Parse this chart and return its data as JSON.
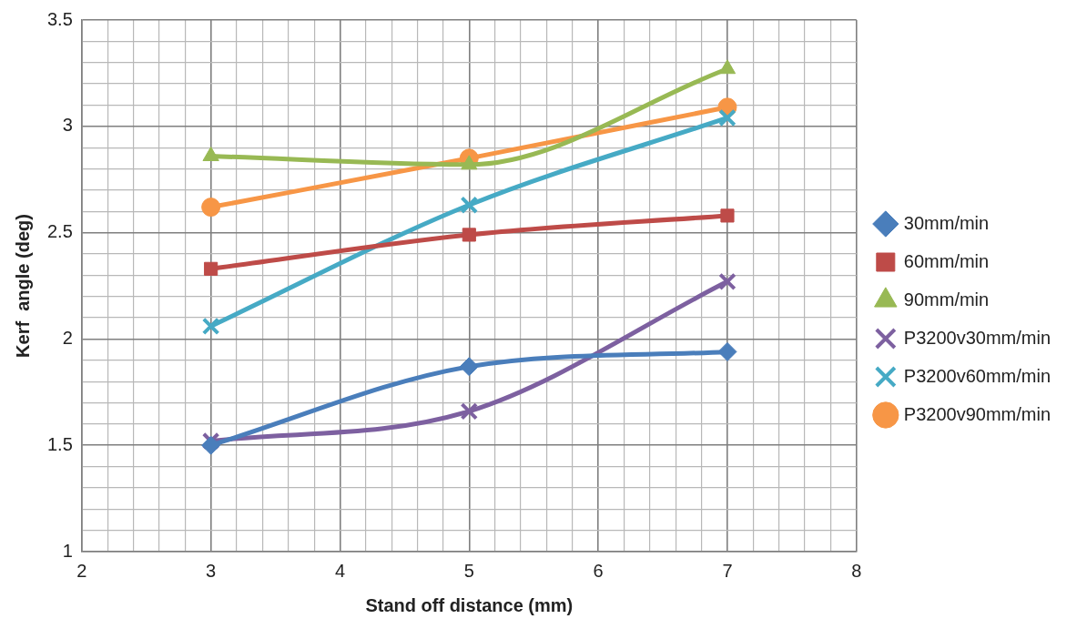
{
  "chart_data": {
    "type": "line",
    "xlabel": "Stand off distance (mm)",
    "ylabel": "Kerf  angle (deg)",
    "x": [
      3,
      5,
      7
    ],
    "series": [
      {
        "name": "30mm/min",
        "color": "#4a7ebb",
        "marker": "diamond",
        "values": [
          1.5,
          1.87,
          1.94
        ]
      },
      {
        "name": "60mm/min",
        "color": "#be4b48",
        "marker": "square",
        "values": [
          2.33,
          2.49,
          2.58
        ]
      },
      {
        "name": "90mm/min",
        "color": "#98b954",
        "marker": "triangle",
        "values": [
          2.86,
          2.82,
          3.27
        ]
      },
      {
        "name": "P3200v30mm/min",
        "color": "#7d60a0",
        "marker": "cross",
        "values": [
          1.52,
          1.66,
          2.27
        ]
      },
      {
        "name": "P3200v60mm/min",
        "color": "#46aac5",
        "marker": "cross",
        "values": [
          2.06,
          2.63,
          3.04
        ]
      },
      {
        "name": "P3200v90mm/min",
        "color": "#f79646",
        "marker": "circle",
        "values": [
          2.62,
          2.85,
          3.09
        ]
      }
    ],
    "xlim": [
      2,
      8
    ],
    "xticks": [
      2,
      {
        "value": 2.2,
        "label": null
      },
      {
        "value": 2.4,
        "label": null
      },
      {
        "value": 2.6,
        "label": null
      },
      {
        "value": 2.8,
        "label": null
      },
      3,
      {
        "value": 3.2,
        "label": null
      },
      {
        "value": 3.4,
        "label": null
      },
      {
        "value": 3.6,
        "label": null
      },
      {
        "value": 3.8,
        "label": null
      },
      4,
      {
        "value": 4.2,
        "label": null
      },
      {
        "value": 4.4,
        "label": null
      },
      {
        "value": 4.6,
        "label": null
      },
      {
        "value": 4.8,
        "label": null
      },
      5,
      {
        "value": 5.2,
        "label": null
      },
      {
        "value": 5.4,
        "label": null
      },
      {
        "value": 5.6,
        "label": null
      },
      {
        "value": 5.8,
        "label": null
      },
      6,
      {
        "value": 6.2,
        "label": null
      },
      {
        "value": 6.4,
        "label": null
      },
      {
        "value": 6.6,
        "label": null
      },
      {
        "value": 6.8,
        "label": null
      },
      7,
      {
        "value": 7.2,
        "label": null
      },
      {
        "value": 7.4,
        "label": null
      },
      {
        "value": 7.6,
        "label": null
      },
      {
        "value": 7.8,
        "label": null
      },
      8
    ],
    "ylim": [
      1,
      3.5
    ],
    "yticks": [
      1,
      {
        "value": 1.1,
        "label": null
      },
      {
        "value": 1.2,
        "label": null
      },
      {
        "value": 1.3,
        "label": null
      },
      {
        "value": 1.4,
        "label": null
      },
      1.5,
      {
        "value": 1.6,
        "label": null
      },
      {
        "value": 1.7,
        "label": null
      },
      {
        "value": 1.8,
        "label": null
      },
      {
        "value": 1.9,
        "label": null
      },
      2,
      {
        "value": 2.1,
        "label": null
      },
      {
        "value": 2.2,
        "label": null
      },
      {
        "value": 2.3,
        "label": null
      },
      {
        "value": 2.4,
        "label": null
      },
      2.5,
      {
        "value": 2.6,
        "label": null
      },
      {
        "value": 2.7,
        "label": null
      },
      {
        "value": 2.8,
        "label": null
      },
      {
        "value": 2.9,
        "label": null
      },
      3,
      {
        "value": 3.1,
        "label": null
      },
      {
        "value": 3.2,
        "label": null
      },
      {
        "value": 3.3,
        "label": null
      },
      {
        "value": 3.4,
        "label": null
      },
      3.5
    ],
    "grid": true,
    "legend": "right",
    "line_style": "solid"
  }
}
